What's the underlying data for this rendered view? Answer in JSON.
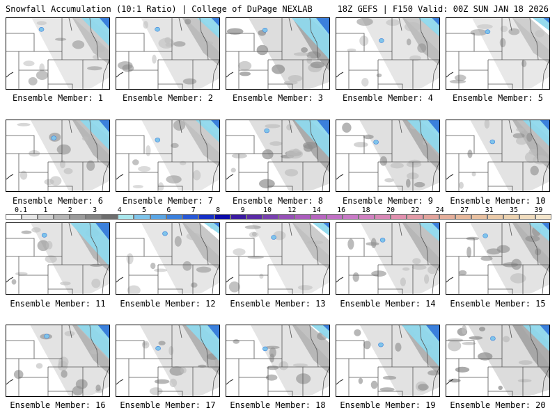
{
  "header": {
    "left": "Snowfall Accumulation (10:1 Ratio) | College of DuPage NEXLAB",
    "right": "18Z GEFS | F150 Valid: 00Z SUN JAN 18 2026"
  },
  "members": [
    {
      "label": "Ensemble Member: 1",
      "intensity": 0.35,
      "blue_ne": 0.55
    },
    {
      "label": "Ensemble Member: 2",
      "intensity": 0.45,
      "blue_ne": 0.35
    },
    {
      "label": "Ensemble Member: 3",
      "intensity": 0.8,
      "blue_ne": 0.9
    },
    {
      "label": "Ensemble Member: 4",
      "intensity": 0.4,
      "blue_ne": 0.3
    },
    {
      "label": "Ensemble Member: 5",
      "intensity": 0.3,
      "blue_ne": 0.15
    },
    {
      "label": "Ensemble Member: 6",
      "intensity": 0.5,
      "blue_ne": 0.6
    },
    {
      "label": "Ensemble Member: 7",
      "intensity": 0.35,
      "blue_ne": 0.4
    },
    {
      "label": "Ensemble Member: 8",
      "intensity": 0.75,
      "blue_ne": 0.8
    },
    {
      "label": "Ensemble Member: 9",
      "intensity": 0.65,
      "blue_ne": 0.7
    },
    {
      "label": "Ensemble Member: 10",
      "intensity": 0.55,
      "blue_ne": 0.5
    },
    {
      "label": "Ensemble Member: 11",
      "intensity": 0.5,
      "blue_ne": 0.95
    },
    {
      "label": "Ensemble Member: 12",
      "intensity": 0.4,
      "blue_ne": 0.1
    },
    {
      "label": "Ensemble Member: 13",
      "intensity": 0.35,
      "blue_ne": 0.15
    },
    {
      "label": "Ensemble Member: 14",
      "intensity": 0.5,
      "blue_ne": 0.3
    },
    {
      "label": "Ensemble Member: 15",
      "intensity": 0.55,
      "blue_ne": 0.3
    },
    {
      "label": "Ensemble Member: 16",
      "intensity": 0.55,
      "blue_ne": 0.7
    },
    {
      "label": "Ensemble Member: 17",
      "intensity": 0.6,
      "blue_ne": 0.75
    },
    {
      "label": "Ensemble Member: 18",
      "intensity": 0.5,
      "blue_ne": 0.2
    },
    {
      "label": "Ensemble Member: 19",
      "intensity": 0.6,
      "blue_ne": 0.9
    },
    {
      "label": "Ensemble Member: 20",
      "intensity": 0.85,
      "blue_ne": 0.5
    }
  ],
  "legend": {
    "labels": [
      "0.1",
      "1",
      "2",
      "3",
      "4",
      "5",
      "6",
      "7",
      "8",
      "9",
      "10",
      "12",
      "14",
      "16",
      "18",
      "20",
      "22",
      "24",
      "27",
      "31",
      "35",
      "39"
    ],
    "colors": [
      "#ffffff",
      "#e6e6e6",
      "#cfcfcf",
      "#b5b5b5",
      "#9a9a9a",
      "#848484",
      "#6d6d6d",
      "#a8e6ec",
      "#7fc4ea",
      "#5aa5e4",
      "#3b80dc",
      "#2858d6",
      "#1530c6",
      "#0a0aa8",
      "#3a1aa0",
      "#5a2aa6",
      "#7840ae",
      "#9550b6",
      "#aa5cbc",
      "#b766c0",
      "#c070c4",
      "#c87ac6",
      "#d080c0",
      "#d888b6",
      "#e090ae",
      "#e29aa6",
      "#e2a49c",
      "#e4ae9a",
      "#e6b89c",
      "#e8c0a0",
      "#eacaa8",
      "#ecd2b0",
      "#f0dcbe",
      "#f4e6cc"
    ]
  }
}
